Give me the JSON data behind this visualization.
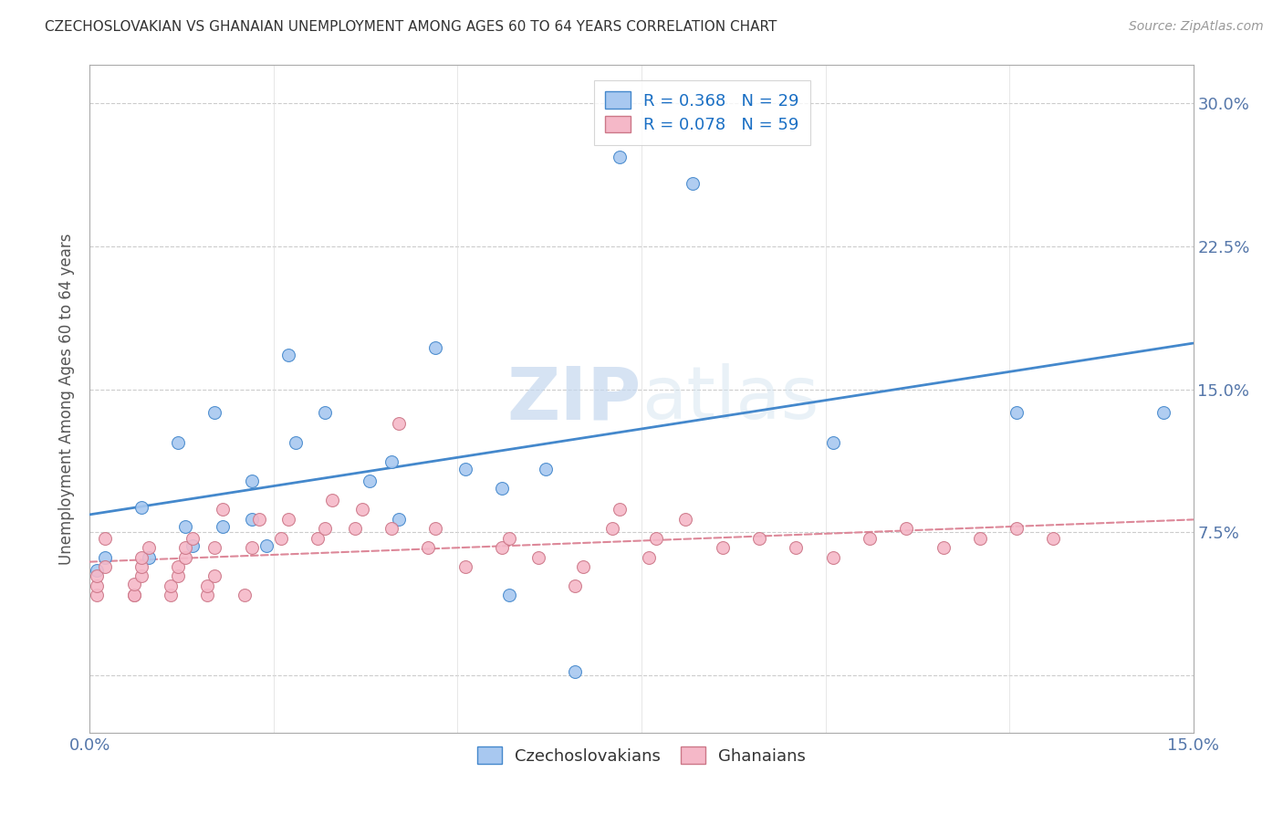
{
  "title": "CZECHOSLOVAKIAN VS GHANAIAN UNEMPLOYMENT AMONG AGES 60 TO 64 YEARS CORRELATION CHART",
  "source": "Source: ZipAtlas.com",
  "ylabel": "Unemployment Among Ages 60 to 64 years",
  "xlim": [
    0.0,
    0.15
  ],
  "ylim": [
    -0.03,
    0.32
  ],
  "xtick_positions": [
    0.0,
    0.025,
    0.05,
    0.075,
    0.1,
    0.125,
    0.15
  ],
  "xticklabels": [
    "0.0%",
    "",
    "",
    "",
    "",
    "",
    "15.0%"
  ],
  "ytick_positions": [
    0.0,
    0.075,
    0.15,
    0.225,
    0.3
  ],
  "yticklabels": [
    "",
    "7.5%",
    "15.0%",
    "22.5%",
    "30.0%"
  ],
  "czech_color": "#a8c8f0",
  "ghana_color": "#f5b8c8",
  "czech_line_color": "#4488cc",
  "ghana_line_color": "#dd8899",
  "R_czech": 0.368,
  "N_czech": 29,
  "R_ghana": 0.078,
  "N_ghana": 59,
  "watermark": "ZIPatlas",
  "czech_x": [
    0.001,
    0.002,
    0.007,
    0.008,
    0.012,
    0.013,
    0.014,
    0.017,
    0.018,
    0.022,
    0.022,
    0.024,
    0.027,
    0.028,
    0.032,
    0.038,
    0.041,
    0.042,
    0.047,
    0.051,
    0.056,
    0.057,
    0.062,
    0.066,
    0.072,
    0.082,
    0.101,
    0.126,
    0.146
  ],
  "czech_y": [
    0.055,
    0.062,
    0.088,
    0.062,
    0.122,
    0.078,
    0.068,
    0.138,
    0.078,
    0.102,
    0.082,
    0.068,
    0.168,
    0.122,
    0.138,
    0.102,
    0.112,
    0.082,
    0.172,
    0.108,
    0.098,
    0.042,
    0.108,
    0.002,
    0.272,
    0.258,
    0.122,
    0.138,
    0.138
  ],
  "ghana_x": [
    0.001,
    0.001,
    0.001,
    0.002,
    0.002,
    0.006,
    0.006,
    0.006,
    0.007,
    0.007,
    0.007,
    0.008,
    0.011,
    0.011,
    0.012,
    0.012,
    0.013,
    0.013,
    0.014,
    0.016,
    0.016,
    0.017,
    0.017,
    0.018,
    0.021,
    0.022,
    0.023,
    0.026,
    0.027,
    0.031,
    0.032,
    0.033,
    0.036,
    0.037,
    0.041,
    0.042,
    0.046,
    0.047,
    0.051,
    0.056,
    0.057,
    0.061,
    0.066,
    0.067,
    0.071,
    0.072,
    0.076,
    0.077,
    0.081,
    0.086,
    0.091,
    0.096,
    0.101,
    0.106,
    0.111,
    0.116,
    0.121,
    0.126,
    0.131
  ],
  "ghana_y": [
    0.042,
    0.047,
    0.052,
    0.057,
    0.072,
    0.042,
    0.042,
    0.048,
    0.052,
    0.057,
    0.062,
    0.067,
    0.042,
    0.047,
    0.052,
    0.057,
    0.062,
    0.067,
    0.072,
    0.042,
    0.047,
    0.052,
    0.067,
    0.087,
    0.042,
    0.067,
    0.082,
    0.072,
    0.082,
    0.072,
    0.077,
    0.092,
    0.077,
    0.087,
    0.077,
    0.132,
    0.067,
    0.077,
    0.057,
    0.067,
    0.072,
    0.062,
    0.047,
    0.057,
    0.077,
    0.087,
    0.062,
    0.072,
    0.082,
    0.067,
    0.072,
    0.067,
    0.062,
    0.072,
    0.077,
    0.067,
    0.072,
    0.077,
    0.072
  ]
}
